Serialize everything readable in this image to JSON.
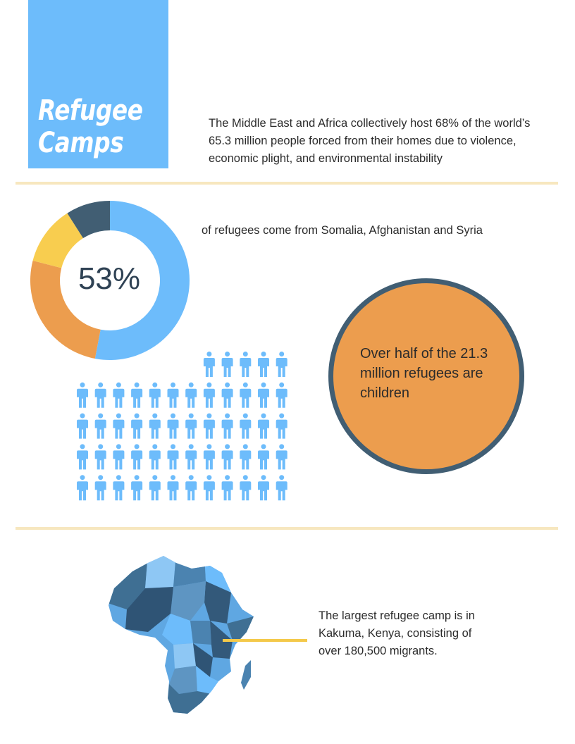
{
  "title": {
    "line1": "Refugee",
    "line2": "Camps"
  },
  "intro_text": "The Middle East and Africa collectively host 68% of the world’s 65.3 million people forced from their homes due to violence, economic plight, and environmental instability",
  "donut": {
    "value_label": "53%",
    "caption": "of refugees come from Somalia, Afghanistan and Syria",
    "segments": [
      {
        "value": 53,
        "color": "#6dbcfb"
      },
      {
        "value": 26,
        "color": "#ec9d4e"
      },
      {
        "value": 12,
        "color": "#f8cd4f"
      },
      {
        "value": 9,
        "color": "#415e73"
      }
    ]
  },
  "people_icons": {
    "row_counts": [
      5,
      12,
      12,
      12,
      12
    ],
    "color": "#6dbcfb"
  },
  "circle_text": "Over half of the 21.3 million refugees are children",
  "map_text": "The largest refugee camp is in Kakuma, Kenya, consisting of over 180,500 migrants.",
  "colors": {
    "accent_blue": "#6dbcfb",
    "dark_slate": "#415e73",
    "orange": "#ec9d4e",
    "yellow": "#f8cd4f",
    "divider": "#f7e7bf"
  }
}
